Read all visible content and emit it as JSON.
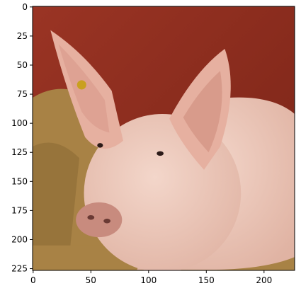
{
  "chart_data": {
    "type": "image",
    "xlim": [
      -0.5,
      226.5
    ],
    "ylim": [
      226.5,
      -0.5
    ],
    "xticks": [
      0,
      50,
      100,
      150,
      200
    ],
    "yticks": [
      0,
      25,
      50,
      75,
      100,
      125,
      150,
      175,
      200,
      225
    ]
  }
}
